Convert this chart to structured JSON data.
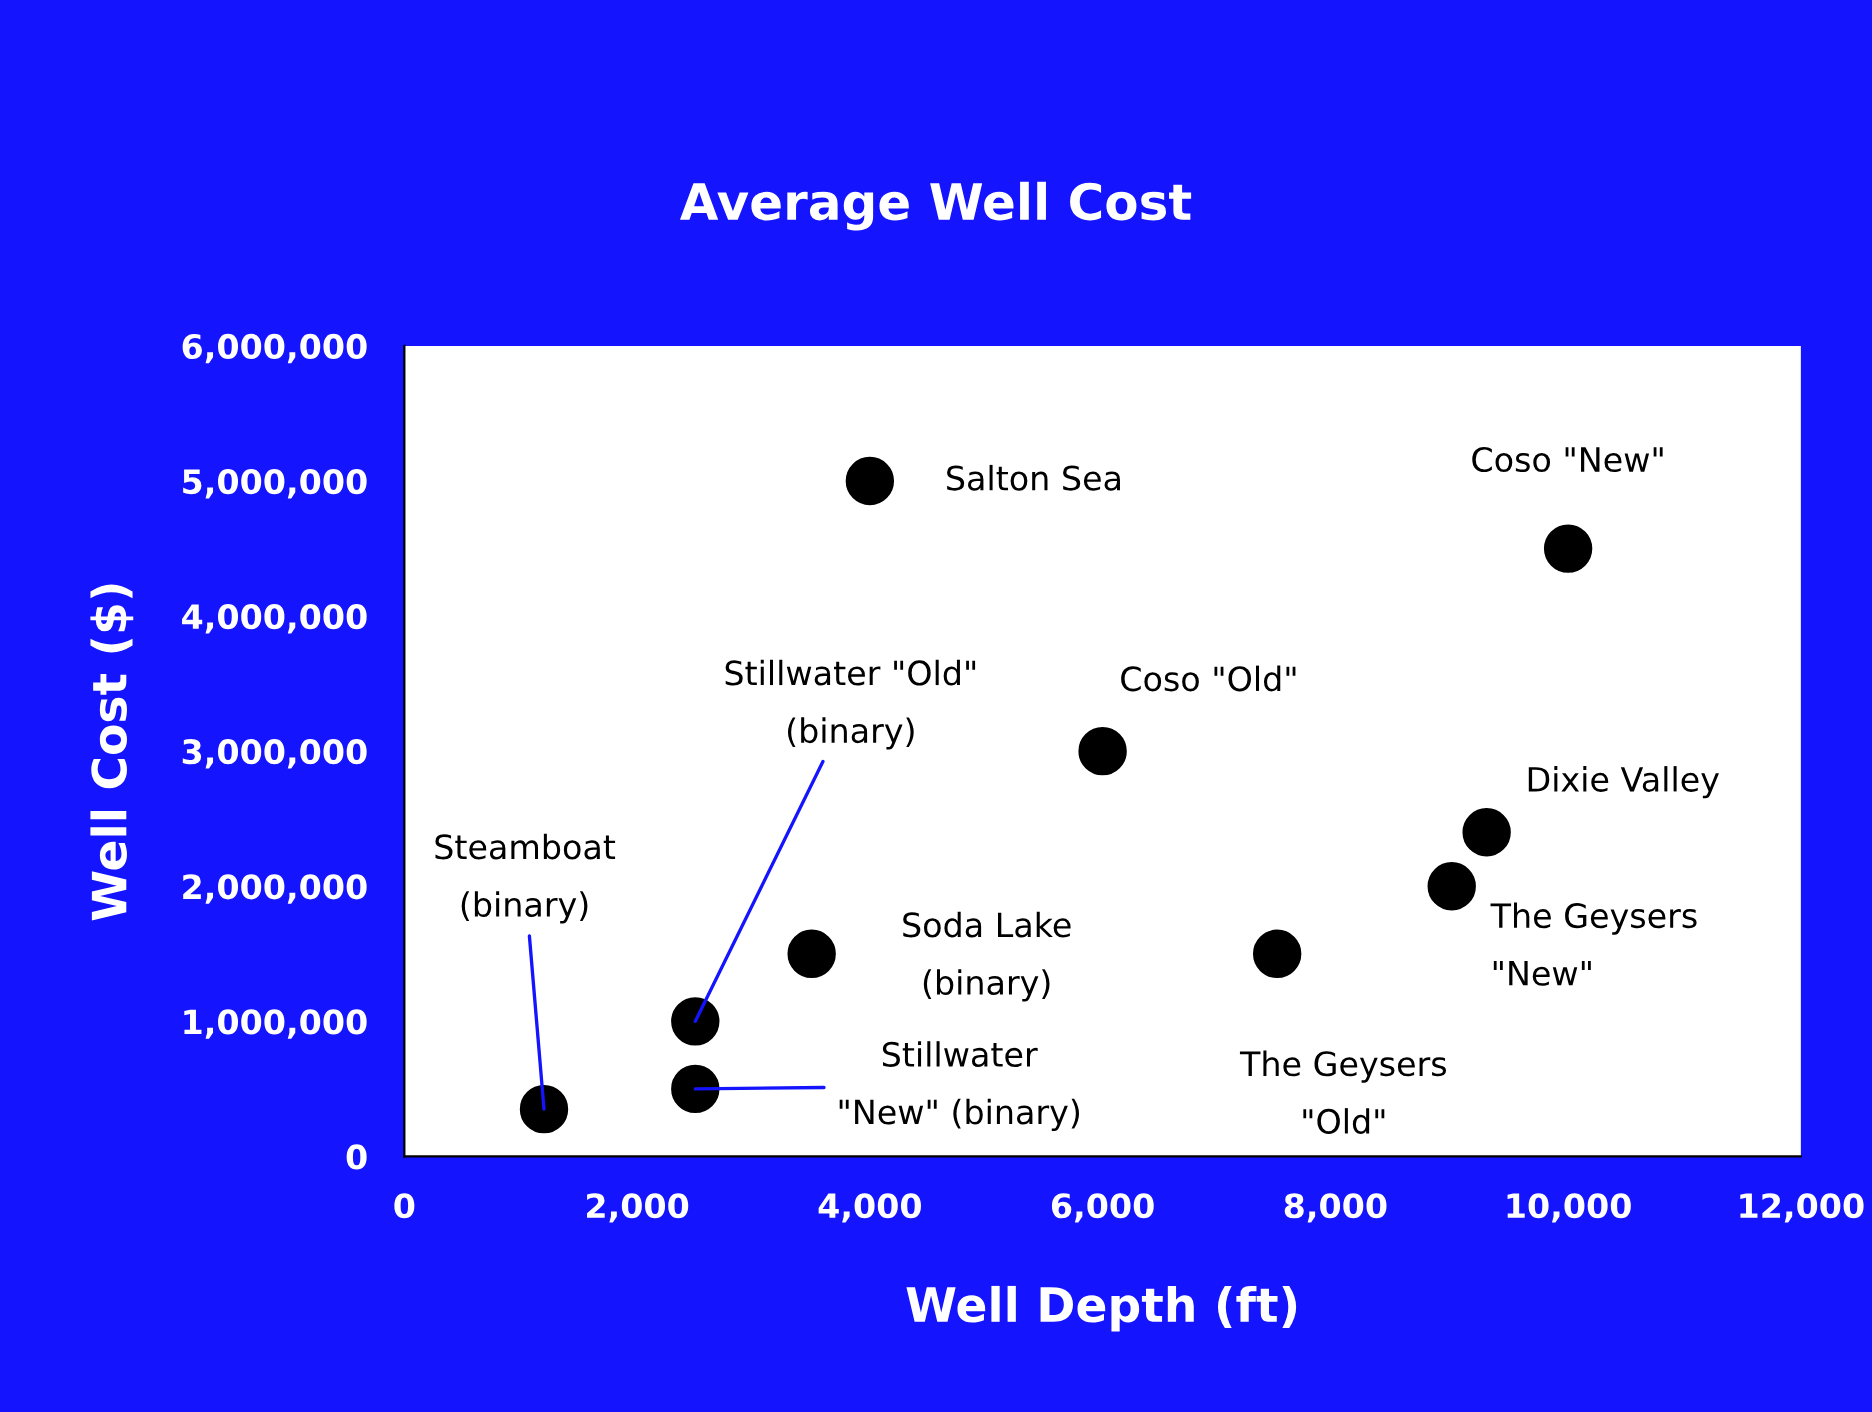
{
  "chart_data": {
    "type": "scatter",
    "title": "Average Well Cost",
    "xlabel": "Well Depth (ft)",
    "ylabel": "Well Cost ($)",
    "x": [
      4000,
      10000,
      6000,
      9300,
      9000,
      7500,
      3500,
      2500,
      2500,
      1200
    ],
    "series": [
      {
        "color": "#000000",
        "values": [
          5000000,
          4500000,
          3000000,
          2400000,
          2000000,
          1500000,
          1500000,
          1000000,
          500000,
          350000
        ]
      }
    ],
    "marker": "circle",
    "grid": false,
    "xlim": [
      0,
      12000
    ],
    "xticks": [
      {
        "value": 0,
        "label": "0"
      },
      {
        "value": 2000,
        "label": "2,000"
      },
      {
        "value": 4000,
        "label": "4,000"
      },
      {
        "value": 6000,
        "label": "6,000"
      },
      {
        "value": 8000,
        "label": "8,000"
      },
      {
        "value": 10000,
        "label": "10,000"
      },
      {
        "value": 12000,
        "label": "12,000"
      }
    ],
    "ylim": [
      0,
      6000000
    ],
    "yticks": [
      {
        "value": 0,
        "label": "0"
      },
      {
        "value": 1000000,
        "label": "1,000,000"
      },
      {
        "value": 2000000,
        "label": "2,000,000"
      },
      {
        "value": 3000000,
        "label": "3,000,000"
      },
      {
        "value": 4000000,
        "label": "4,000,000"
      },
      {
        "value": 5000000,
        "label": "5,000,000"
      },
      {
        "value": 6000000,
        "label": "6,000,000"
      }
    ],
    "annotations": [
      {
        "text": "Salton Sea",
        "x": 4000,
        "y": 5000000
      },
      {
        "text": "Coso \"New\"",
        "x": 10000,
        "y": 4500000
      },
      {
        "text": "Coso \"Old\"",
        "x": 6000,
        "y": 3000000
      },
      {
        "text": "Dixie Valley",
        "x": 9300,
        "y": 2400000
      },
      {
        "text": "The Geysers\n\"New\"",
        "x": 9000,
        "y": 2000000
      },
      {
        "text": "The Geysers\n\"Old\"",
        "x": 7500,
        "y": 1500000
      },
      {
        "text": "Soda Lake\n(binary)",
        "x": 3500,
        "y": 1500000
      },
      {
        "text": "Stillwater \"Old\"\n(binary)",
        "x": 2500,
        "y": 1000000
      },
      {
        "text": "Stillwater\n\"New\" (binary)",
        "x": 2500,
        "y": 500000
      },
      {
        "text": "Steamboat\n(binary)",
        "x": 1200,
        "y": 350000
      }
    ]
  }
}
